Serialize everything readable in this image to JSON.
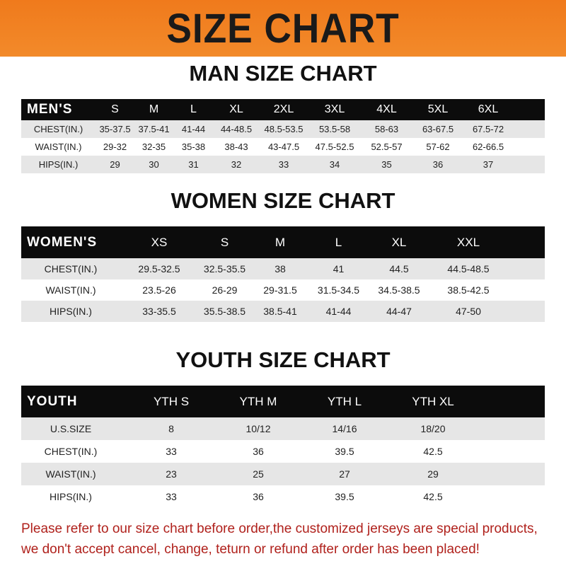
{
  "banner": {
    "title": "SIZE CHART",
    "color": "#f07a1c"
  },
  "men": {
    "title": "MAN SIZE CHART",
    "header": [
      "MEN'S",
      "S",
      "M",
      "L",
      "XL",
      "2XL",
      "3XL",
      "4XL",
      "5XL",
      "6XL"
    ],
    "rows": [
      [
        "CHEST(IN.)",
        "35-37.5",
        "37.5-41",
        "41-44",
        "44-48.5",
        "48.5-53.5",
        "53.5-58",
        "58-63",
        "63-67.5",
        "67.5-72"
      ],
      [
        "WAIST(IN.)",
        "29-32",
        "32-35",
        "35-38",
        "38-43",
        "43-47.5",
        "47.5-52.5",
        "52.5-57",
        "57-62",
        "62-66.5"
      ],
      [
        "HIPS(IN.)",
        "29",
        "30",
        "31",
        "32",
        "33",
        "34",
        "35",
        "36",
        "37"
      ]
    ]
  },
  "women": {
    "title": "WOMEN SIZE CHART",
    "header": [
      "WOMEN'S",
      "XS",
      "S",
      "M",
      "L",
      "XL",
      "XXL"
    ],
    "rows": [
      [
        "CHEST(IN.)",
        "29.5-32.5",
        "32.5-35.5",
        "38",
        "41",
        "44.5",
        "44.5-48.5"
      ],
      [
        "WAIST(IN.)",
        "23.5-26",
        "26-29",
        "29-31.5",
        "31.5-34.5",
        "34.5-38.5",
        "38.5-42.5"
      ],
      [
        "HIPS(IN.)",
        "33-35.5",
        "35.5-38.5",
        "38.5-41",
        "41-44",
        "44-47",
        "47-50"
      ]
    ]
  },
  "youth": {
    "title": "YOUTH SIZE CHART",
    "header": [
      "YOUTH",
      "YTH S",
      "YTH M",
      "YTH L",
      "YTH XL"
    ],
    "rows": [
      [
        "U.S.SIZE",
        "8",
        "10/12",
        "14/16",
        "18/20"
      ],
      [
        "CHEST(IN.)",
        "33",
        "36",
        "39.5",
        "42.5"
      ],
      [
        "WAIST(IN.)",
        "23",
        "25",
        "27",
        "29"
      ],
      [
        "HIPS(IN.)",
        "33",
        "36",
        "39.5",
        "42.5"
      ]
    ]
  },
  "note": {
    "line1": "Please refer to our size chart before order,the customized jerseys are special products,",
    "line2": "we don't accept cancel, change, teturn or refund after order has been placed!",
    "color": "#b0211c"
  }
}
